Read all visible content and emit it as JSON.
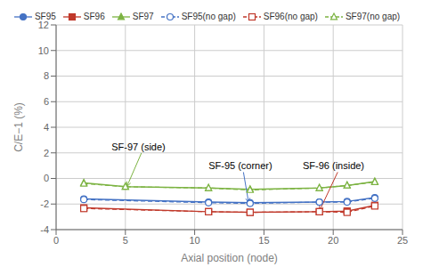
{
  "chart_data": {
    "type": "line",
    "xlabel": "Axial position (node)",
    "ylabel": "C/E−1 (%)",
    "xlim": [
      0,
      25
    ],
    "ylim": [
      -4,
      12
    ],
    "xticks": [
      0,
      5,
      10,
      15,
      20,
      25
    ],
    "yticks": [
      -4,
      -2,
      0,
      2,
      4,
      6,
      8,
      10,
      12
    ],
    "grid": true,
    "legend": "top",
    "series": [
      {
        "name": "SF95",
        "color": "#4472c4",
        "marker": "circle",
        "line_style": "solid",
        "x": [
          2,
          11,
          14,
          19,
          21,
          23
        ],
        "values": [
          -1.6,
          -1.85,
          -1.9,
          -1.85,
          -1.8,
          -1.5
        ]
      },
      {
        "name": "SF96",
        "color": "#c0392b",
        "marker": "square",
        "line_style": "solid",
        "x": [
          2,
          11,
          14,
          19,
          21,
          23
        ],
        "values": [
          -2.3,
          -2.6,
          -2.65,
          -2.6,
          -2.55,
          -2.1
        ]
      },
      {
        "name": "SF97",
        "color": "#7cb342",
        "marker": "triangle",
        "line_style": "solid",
        "x": [
          2,
          5,
          11,
          14,
          19,
          21,
          23
        ],
        "values": [
          -0.35,
          -0.65,
          -0.75,
          -0.85,
          -0.75,
          -0.55,
          -0.25
        ]
      },
      {
        "name": "SF95(no gap)",
        "color": "#4472c4",
        "marker": "open_circle",
        "line_style": "dashed",
        "x": [
          2,
          11,
          14,
          19,
          21,
          23
        ],
        "values": [
          -1.65,
          -1.9,
          -1.95,
          -1.85,
          -1.85,
          -1.55
        ]
      },
      {
        "name": "SF96(no gap)",
        "color": "#c0392b",
        "marker": "open_square",
        "line_style": "dashed",
        "x": [
          2,
          11,
          14,
          19,
          21,
          23
        ],
        "values": [
          -2.35,
          -2.6,
          -2.65,
          -2.6,
          -2.65,
          -2.15
        ]
      },
      {
        "name": "SF97(no gap)",
        "color": "#7cb342",
        "marker": "open_triangle",
        "line_style": "dashed",
        "x": [
          2,
          5,
          11,
          14,
          19,
          21,
          23
        ],
        "values": [
          -0.4,
          -0.65,
          -0.75,
          -0.9,
          -0.75,
          -0.55,
          -0.28
        ]
      }
    ],
    "annotations": [
      {
        "label": "SF-97 (side)",
        "x": 4.0,
        "y": 2.2,
        "arrow_x": 5.1,
        "arrow_y": -0.65,
        "color": "#7cb342"
      },
      {
        "label": "SF-95 (corner)",
        "x": 11.0,
        "y": 0.7,
        "arrow_x": 13.9,
        "arrow_y": -1.93,
        "color": "#4472c4"
      },
      {
        "label": "SF-96 (inside)",
        "x": 17.8,
        "y": 0.7,
        "arrow_x": 19.0,
        "arrow_y": -2.55,
        "color": "#c0392b"
      }
    ]
  }
}
